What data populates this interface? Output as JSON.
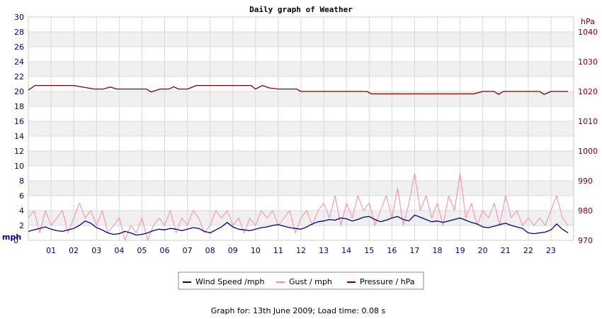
{
  "chart_data": {
    "type": "line",
    "title": "Daily graph of Weather",
    "x_tick_labels": [
      "01",
      "02",
      "03",
      "04",
      "05",
      "06",
      "07",
      "08",
      "09",
      "10",
      "11",
      "12",
      "13",
      "14",
      "15",
      "16",
      "17",
      "18",
      "19",
      "20",
      "21",
      "22",
      "23"
    ],
    "x_range_hours": [
      0,
      24
    ],
    "left_axis": {
      "label": "mph",
      "range": [
        0,
        30
      ],
      "ticks": [
        0,
        2,
        4,
        6,
        8,
        10,
        12,
        14,
        16,
        18,
        20,
        22,
        24,
        26,
        28,
        30
      ]
    },
    "right_axis": {
      "label": "hPa",
      "range": [
        970,
        1045
      ],
      "ticks": [
        970,
        980,
        990,
        1000,
        1010,
        1020,
        1030,
        1040
      ]
    },
    "grid": true,
    "legend_position": "bottom",
    "series": [
      {
        "name": "Wind Speed /mph",
        "axis": "left",
        "color": "#000080",
        "x": [
          0,
          0.25,
          0.5,
          0.75,
          1,
          1.25,
          1.5,
          1.75,
          2,
          2.25,
          2.5,
          2.75,
          3,
          3.25,
          3.5,
          3.75,
          4,
          4.25,
          4.5,
          4.75,
          5,
          5.25,
          5.5,
          5.75,
          6,
          6.25,
          6.5,
          6.75,
          7,
          7.25,
          7.5,
          7.75,
          8,
          8.25,
          8.5,
          8.75,
          9,
          9.25,
          9.5,
          9.75,
          10,
          10.25,
          10.5,
          10.75,
          11,
          11.25,
          11.5,
          11.75,
          12,
          12.25,
          12.5,
          12.75,
          13,
          13.25,
          13.5,
          13.75,
          14,
          14.25,
          14.5,
          14.75,
          15,
          15.25,
          15.5,
          15.75,
          16,
          16.25,
          16.5,
          16.75,
          17,
          17.25,
          17.5,
          17.75,
          18,
          18.25,
          18.5,
          18.75,
          19,
          19.25,
          19.5,
          19.75,
          20,
          20.25,
          20.5,
          20.75,
          21,
          21.25,
          21.5,
          21.75,
          22,
          22.25,
          22.5,
          22.75,
          23,
          23.25,
          23.5,
          23.75
        ],
        "values": [
          1.2,
          1.4,
          1.6,
          1.8,
          1.5,
          1.3,
          1.2,
          1.4,
          1.6,
          2.0,
          2.6,
          2.3,
          1.7,
          1.4,
          1.0,
          0.8,
          0.9,
          1.2,
          1.0,
          0.7,
          0.8,
          1.0,
          1.3,
          1.5,
          1.4,
          1.6,
          1.5,
          1.3,
          1.5,
          1.7,
          1.6,
          1.2,
          1.0,
          1.4,
          1.8,
          2.4,
          1.8,
          1.5,
          1.4,
          1.3,
          1.5,
          1.7,
          1.8,
          2.0,
          2.1,
          1.9,
          1.7,
          1.6,
          1.5,
          1.8,
          2.2,
          2.5,
          2.6,
          2.8,
          2.7,
          3.0,
          2.9,
          2.6,
          2.8,
          3.1,
          3.2,
          2.8,
          2.5,
          2.7,
          3.0,
          3.2,
          2.8,
          2.6,
          3.4,
          3.1,
          2.8,
          2.5,
          2.6,
          2.4,
          2.6,
          2.8,
          3.0,
          2.7,
          2.4,
          2.2,
          1.8,
          1.7,
          1.9,
          2.1,
          2.3,
          2.0,
          1.8,
          1.6,
          1.0,
          0.9,
          1.0,
          1.1,
          1.4,
          2.2,
          1.5,
          1.0
        ]
      },
      {
        "name": "Gust / mph",
        "axis": "left",
        "color": "#ff88aa",
        "x": [
          0,
          0.25,
          0.5,
          0.75,
          1,
          1.25,
          1.5,
          1.75,
          2,
          2.25,
          2.5,
          2.75,
          3,
          3.25,
          3.5,
          3.75,
          4,
          4.25,
          4.5,
          4.75,
          5,
          5.25,
          5.5,
          5.75,
          6,
          6.25,
          6.5,
          6.75,
          7,
          7.25,
          7.5,
          7.75,
          8,
          8.25,
          8.5,
          8.75,
          9,
          9.25,
          9.5,
          9.75,
          10,
          10.25,
          10.5,
          10.75,
          11,
          11.25,
          11.5,
          11.75,
          12,
          12.25,
          12.5,
          12.75,
          13,
          13.25,
          13.5,
          13.75,
          14,
          14.25,
          14.5,
          14.75,
          15,
          15.25,
          15.5,
          15.75,
          16,
          16.25,
          16.5,
          16.75,
          17,
          17.25,
          17.5,
          17.75,
          18,
          18.25,
          18.5,
          18.75,
          19,
          19.25,
          19.5,
          19.75,
          20,
          20.25,
          20.5,
          20.75,
          21,
          21.25,
          21.5,
          21.75,
          22,
          22.25,
          22.5,
          22.75,
          23,
          23.25,
          23.5,
          23.75
        ],
        "values": [
          3,
          4,
          1,
          4,
          2,
          3,
          4,
          1,
          3,
          5,
          3,
          4,
          2,
          4,
          1,
          2,
          3,
          0,
          2,
          1,
          3,
          0,
          2,
          3,
          2,
          4,
          1,
          3,
          2,
          4,
          3,
          1,
          2,
          4,
          3,
          4,
          2,
          3,
          1,
          3,
          2,
          4,
          3,
          4,
          2,
          3,
          4,
          1,
          3,
          4,
          2,
          4,
          5,
          3,
          6,
          2,
          5,
          3,
          6,
          4,
          5,
          2,
          4,
          6,
          3,
          7,
          2,
          5,
          9,
          4,
          6,
          3,
          5,
          2,
          6,
          4,
          9,
          3,
          5,
          2,
          4,
          3,
          5,
          2,
          6,
          3,
          4,
          2,
          3,
          2,
          3,
          2,
          4,
          6,
          3,
          2
        ]
      },
      {
        "name": "Pressure / hPa",
        "axis": "right",
        "color": "#800000",
        "x": [
          0,
          0.3,
          1,
          2,
          2.9,
          3.3,
          3.6,
          3.9,
          4.5,
          5.2,
          5.4,
          5.8,
          6.2,
          6.4,
          6.6,
          7.0,
          7.4,
          8.0,
          9.0,
          9.8,
          10.0,
          10.3,
          10.6,
          11.0,
          11.8,
          12.0,
          13.0,
          14.0,
          14.9,
          15.1,
          16.0,
          17.0,
          18.0,
          19.0,
          19.6,
          20.0,
          20.5,
          20.7,
          20.9,
          21.5,
          22.0,
          22.5,
          22.7,
          23.0,
          23.5,
          23.75
        ],
        "values": [
          1020.5,
          1022.0,
          1022.0,
          1022.0,
          1020.8,
          1020.8,
          1021.5,
          1020.8,
          1020.8,
          1020.8,
          1019.8,
          1020.8,
          1020.8,
          1021.6,
          1020.8,
          1020.8,
          1022.0,
          1022.0,
          1022.0,
          1022.0,
          1020.8,
          1022.0,
          1021.2,
          1020.8,
          1020.8,
          1020.0,
          1020.0,
          1020.0,
          1020.0,
          1019.2,
          1019.2,
          1019.2,
          1019.2,
          1019.2,
          1019.2,
          1020.0,
          1020.0,
          1019.0,
          1020.0,
          1020.0,
          1020.0,
          1020.0,
          1019.0,
          1020.0,
          1020.0,
          1020.0
        ]
      }
    ]
  },
  "footer": {
    "text": "Graph for: 13th June 2009; Load time: 0.08 s"
  }
}
